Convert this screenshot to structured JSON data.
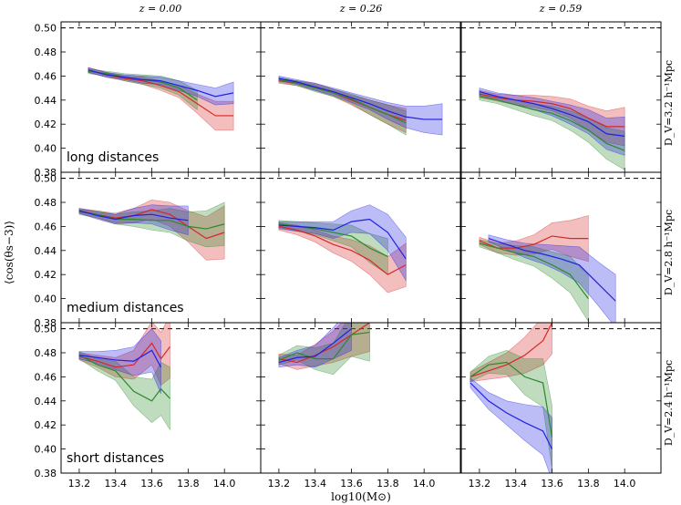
{
  "chart_data": {
    "type": "line",
    "ylabel": "⟨cos(θs−3)⟩",
    "xlabel": "log10(M⊙)",
    "xlim": [
      13.1,
      14.2
    ],
    "ylim": [
      0.38,
      0.505
    ],
    "x_ticks": [
      "13.2",
      "13.4",
      "13.6",
      "13.8",
      "14.0"
    ],
    "y_ticks": [
      "0.38",
      "0.40",
      "0.42",
      "0.44",
      "0.46",
      "0.48",
      "0.50"
    ],
    "reference_line": 0.5,
    "columns": [
      "z = 0.00",
      "z = 0.26",
      "z = 0.59"
    ],
    "rows": [
      {
        "label": "D_V=3.2 h⁻¹Mpc",
        "annotation": "long distances"
      },
      {
        "label": "D_V=2.8 h⁻¹Mpc",
        "annotation": "medium distances"
      },
      {
        "label": "D_V=2.4 h⁻¹Mpc",
        "annotation": "short distances"
      }
    ],
    "colors": {
      "red": "#d62728",
      "green": "#2a8a2a",
      "blue": "#2020e0"
    },
    "panels": [
      {
        "row": 0,
        "col": 0,
        "series": [
          {
            "name": "red",
            "x": [
              13.25,
              13.35,
              13.45,
              13.55,
              13.65,
              13.75,
              13.85,
              13.95,
              14.05
            ],
            "y": [
              0.465,
              0.461,
              0.458,
              0.456,
              0.452,
              0.447,
              0.437,
              0.427,
              0.427
            ],
            "err": [
              0.002,
              0.002,
              0.002,
              0.003,
              0.004,
              0.005,
              0.008,
              0.012,
              0.012
            ]
          },
          {
            "name": "green",
            "x": [
              13.25,
              13.35,
              13.45,
              13.55,
              13.65,
              13.75,
              13.85
            ],
            "y": [
              0.464,
              0.462,
              0.459,
              0.457,
              0.455,
              0.45,
              0.44
            ],
            "err": [
              0.002,
              0.002,
              0.003,
              0.004,
              0.005,
              0.006,
              0.008
            ]
          },
          {
            "name": "blue",
            "x": [
              13.25,
              13.35,
              13.45,
              13.55,
              13.65,
              13.75,
              13.85,
              13.95,
              14.05
            ],
            "y": [
              0.465,
              0.461,
              0.459,
              0.457,
              0.456,
              0.452,
              0.448,
              0.443,
              0.446
            ],
            "err": [
              0.002,
              0.002,
              0.002,
              0.003,
              0.003,
              0.004,
              0.005,
              0.007,
              0.009
            ]
          }
        ]
      },
      {
        "row": 0,
        "col": 1,
        "series": [
          {
            "name": "red",
            "x": [
              13.2,
              13.3,
              13.4,
              13.5,
              13.6,
              13.7,
              13.8,
              13.9
            ],
            "y": [
              0.456,
              0.454,
              0.451,
              0.446,
              0.44,
              0.434,
              0.428,
              0.423
            ],
            "err": [
              0.002,
              0.002,
              0.003,
              0.003,
              0.004,
              0.006,
              0.008,
              0.01
            ]
          },
          {
            "name": "green",
            "x": [
              13.2,
              13.3,
              13.4,
              13.5,
              13.6,
              13.7,
              13.8,
              13.9
            ],
            "y": [
              0.457,
              0.454,
              0.45,
              0.446,
              0.441,
              0.434,
              0.428,
              0.421
            ],
            "err": [
              0.002,
              0.002,
              0.003,
              0.003,
              0.004,
              0.006,
              0.008,
              0.01
            ]
          },
          {
            "name": "blue",
            "x": [
              13.2,
              13.3,
              13.4,
              13.5,
              13.6,
              13.7,
              13.8,
              13.9,
              14.0,
              14.1
            ],
            "y": [
              0.458,
              0.455,
              0.451,
              0.447,
              0.442,
              0.437,
              0.431,
              0.426,
              0.424,
              0.424
            ],
            "err": [
              0.002,
              0.002,
              0.003,
              0.003,
              0.004,
              0.005,
              0.007,
              0.009,
              0.011,
              0.013
            ]
          }
        ]
      },
      {
        "row": 0,
        "col": 2,
        "series": [
          {
            "name": "red",
            "x": [
              13.2,
              13.3,
              13.4,
              13.5,
              13.6,
              13.7,
              13.8,
              13.9,
              14.0
            ],
            "y": [
              0.445,
              0.442,
              0.44,
              0.439,
              0.437,
              0.433,
              0.425,
              0.418,
              0.418
            ],
            "err": [
              0.003,
              0.003,
              0.004,
              0.005,
              0.006,
              0.008,
              0.01,
              0.013,
              0.016
            ]
          },
          {
            "name": "green",
            "x": [
              13.2,
              13.3,
              13.4,
              13.5,
              13.6,
              13.7,
              13.8,
              13.9,
              14.0
            ],
            "y": [
              0.443,
              0.44,
              0.436,
              0.432,
              0.429,
              0.423,
              0.415,
              0.404,
              0.398
            ],
            "err": [
              0.003,
              0.003,
              0.004,
              0.005,
              0.006,
              0.008,
              0.01,
              0.013,
              0.016
            ]
          },
          {
            "name": "blue",
            "x": [
              13.2,
              13.3,
              13.4,
              13.5,
              13.6,
              13.7,
              13.8,
              13.9,
              14.0
            ],
            "y": [
              0.447,
              0.443,
              0.44,
              0.437,
              0.433,
              0.428,
              0.422,
              0.412,
              0.41
            ],
            "err": [
              0.003,
              0.003,
              0.004,
              0.005,
              0.006,
              0.008,
              0.01,
              0.013,
              0.016
            ]
          }
        ]
      },
      {
        "row": 1,
        "col": 0,
        "series": [
          {
            "name": "red",
            "x": [
              13.2,
              13.3,
              13.4,
              13.5,
              13.6,
              13.7,
              13.8,
              13.9,
              14.0
            ],
            "y": [
              0.473,
              0.47,
              0.467,
              0.469,
              0.474,
              0.47,
              0.46,
              0.45,
              0.455
            ],
            "err": [
              0.002,
              0.003,
              0.004,
              0.006,
              0.008,
              0.01,
              0.013,
              0.018,
              0.022
            ]
          },
          {
            "name": "green",
            "x": [
              13.2,
              13.3,
              13.4,
              13.5,
              13.6,
              13.7,
              13.8,
              13.9,
              14.0
            ],
            "y": [
              0.472,
              0.47,
              0.466,
              0.466,
              0.465,
              0.465,
              0.46,
              0.458,
              0.462
            ],
            "err": [
              0.002,
              0.003,
              0.004,
              0.006,
              0.008,
              0.01,
              0.012,
              0.015,
              0.018
            ]
          },
          {
            "name": "blue",
            "x": [
              13.2,
              13.3,
              13.4,
              13.5,
              13.6,
              13.7,
              13.8
            ],
            "y": [
              0.473,
              0.469,
              0.466,
              0.469,
              0.47,
              0.467,
              0.465
            ],
            "err": [
              0.002,
              0.003,
              0.004,
              0.006,
              0.008,
              0.01,
              0.012
            ]
          }
        ]
      },
      {
        "row": 1,
        "col": 1,
        "series": [
          {
            "name": "red",
            "x": [
              13.2,
              13.3,
              13.4,
              13.5,
              13.6,
              13.7,
              13.8,
              13.9
            ],
            "y": [
              0.46,
              0.457,
              0.452,
              0.445,
              0.44,
              0.432,
              0.42,
              0.428
            ],
            "err": [
              0.003,
              0.004,
              0.005,
              0.007,
              0.009,
              0.012,
              0.015,
              0.018
            ]
          },
          {
            "name": "green",
            "x": [
              13.2,
              13.3,
              13.4,
              13.5,
              13.6,
              13.7,
              13.8
            ],
            "y": [
              0.462,
              0.46,
              0.458,
              0.455,
              0.452,
              0.442,
              0.435
            ],
            "err": [
              0.003,
              0.004,
              0.005,
              0.007,
              0.009,
              0.012,
              0.015
            ]
          },
          {
            "name": "blue",
            "x": [
              13.2,
              13.3,
              13.4,
              13.5,
              13.6,
              13.7,
              13.8,
              13.9
            ],
            "y": [
              0.461,
              0.46,
              0.459,
              0.457,
              0.464,
              0.466,
              0.455,
              0.433
            ],
            "err": [
              0.003,
              0.004,
              0.005,
              0.007,
              0.009,
              0.012,
              0.015,
              0.018
            ]
          }
        ]
      },
      {
        "row": 1,
        "col": 2,
        "series": [
          {
            "name": "red",
            "x": [
              13.2,
              13.3,
              13.4,
              13.5,
              13.6,
              13.7,
              13.8
            ],
            "y": [
              0.448,
              0.442,
              0.442,
              0.445,
              0.452,
              0.45,
              0.45
            ],
            "err": [
              0.003,
              0.004,
              0.006,
              0.008,
              0.011,
              0.015,
              0.019
            ]
          },
          {
            "name": "green",
            "x": [
              13.2,
              13.3,
              13.4,
              13.5,
              13.6,
              13.7,
              13.8
            ],
            "y": [
              0.446,
              0.442,
              0.438,
              0.435,
              0.428,
              0.42,
              0.4
            ],
            "err": [
              0.003,
              0.004,
              0.006,
              0.008,
              0.011,
              0.015,
              0.019
            ]
          },
          {
            "name": "blue",
            "x": [
              13.25,
              13.35,
              13.45,
              13.55,
              13.65,
              13.75,
              13.85,
              13.95
            ],
            "y": [
              0.45,
              0.445,
              0.44,
              0.437,
              0.433,
              0.428,
              0.413,
              0.398
            ],
            "err": [
              0.003,
              0.004,
              0.006,
              0.008,
              0.011,
              0.015,
              0.018,
              0.022
            ]
          }
        ]
      },
      {
        "row": 2,
        "col": 0,
        "series": [
          {
            "name": "red",
            "x": [
              13.2,
              13.3,
              13.4,
              13.5,
              13.6,
              13.65,
              13.7
            ],
            "y": [
              0.477,
              0.473,
              0.468,
              0.47,
              0.488,
              0.475,
              0.485
            ],
            "err": [
              0.003,
              0.005,
              0.008,
              0.012,
              0.018,
              0.022,
              0.026
            ]
          },
          {
            "name": "green",
            "x": [
              13.2,
              13.3,
              13.4,
              13.5,
              13.6,
              13.65,
              13.7
            ],
            "y": [
              0.478,
              0.47,
              0.465,
              0.448,
              0.44,
              0.45,
              0.442
            ],
            "err": [
              0.003,
              0.005,
              0.008,
              0.012,
              0.018,
              0.022,
              0.026
            ]
          },
          {
            "name": "blue",
            "x": [
              13.2,
              13.3,
              13.4,
              13.5,
              13.6,
              13.65
            ],
            "y": [
              0.478,
              0.476,
              0.474,
              0.473,
              0.482,
              0.468
            ],
            "err": [
              0.003,
              0.005,
              0.008,
              0.012,
              0.018,
              0.022
            ]
          }
        ]
      },
      {
        "row": 2,
        "col": 1,
        "series": [
          {
            "name": "red",
            "x": [
              13.2,
              13.3,
              13.4,
              13.5,
              13.6,
              13.7
            ],
            "y": [
              0.475,
              0.472,
              0.478,
              0.485,
              0.495,
              0.505
            ],
            "err": [
              0.004,
              0.006,
              0.009,
              0.013,
              0.018,
              0.024
            ]
          },
          {
            "name": "green",
            "x": [
              13.2,
              13.3,
              13.4,
              13.5,
              13.6,
              13.7
            ],
            "y": [
              0.474,
              0.48,
              0.475,
              0.475,
              0.495,
              0.497
            ],
            "err": [
              0.004,
              0.006,
              0.009,
              0.013,
              0.018,
              0.024
            ]
          },
          {
            "name": "blue",
            "x": [
              13.2,
              13.3,
              13.4,
              13.5,
              13.6
            ],
            "y": [
              0.472,
              0.476,
              0.477,
              0.488,
              0.5
            ],
            "err": [
              0.004,
              0.006,
              0.009,
              0.013,
              0.018
            ]
          }
        ]
      },
      {
        "row": 2,
        "col": 2,
        "series": [
          {
            "name": "red",
            "x": [
              13.15,
              13.25,
              13.35,
              13.45,
              13.55,
              13.6
            ],
            "y": [
              0.46,
              0.465,
              0.47,
              0.478,
              0.49,
              0.505
            ],
            "err": [
              0.004,
              0.007,
              0.01,
              0.015,
              0.02,
              0.026
            ]
          },
          {
            "name": "green",
            "x": [
              13.15,
              13.25,
              13.35,
              13.45,
              13.55,
              13.6
            ],
            "y": [
              0.46,
              0.47,
              0.472,
              0.46,
              0.455,
              0.41
            ],
            "err": [
              0.004,
              0.007,
              0.01,
              0.015,
              0.02,
              0.026
            ]
          },
          {
            "name": "blue",
            "x": [
              13.15,
              13.25,
              13.35,
              13.45,
              13.55,
              13.6
            ],
            "y": [
              0.455,
              0.44,
              0.43,
              0.422,
              0.415,
              0.4
            ],
            "err": [
              0.004,
              0.007,
              0.01,
              0.015,
              0.02,
              0.026
            ]
          }
        ]
      }
    ]
  }
}
